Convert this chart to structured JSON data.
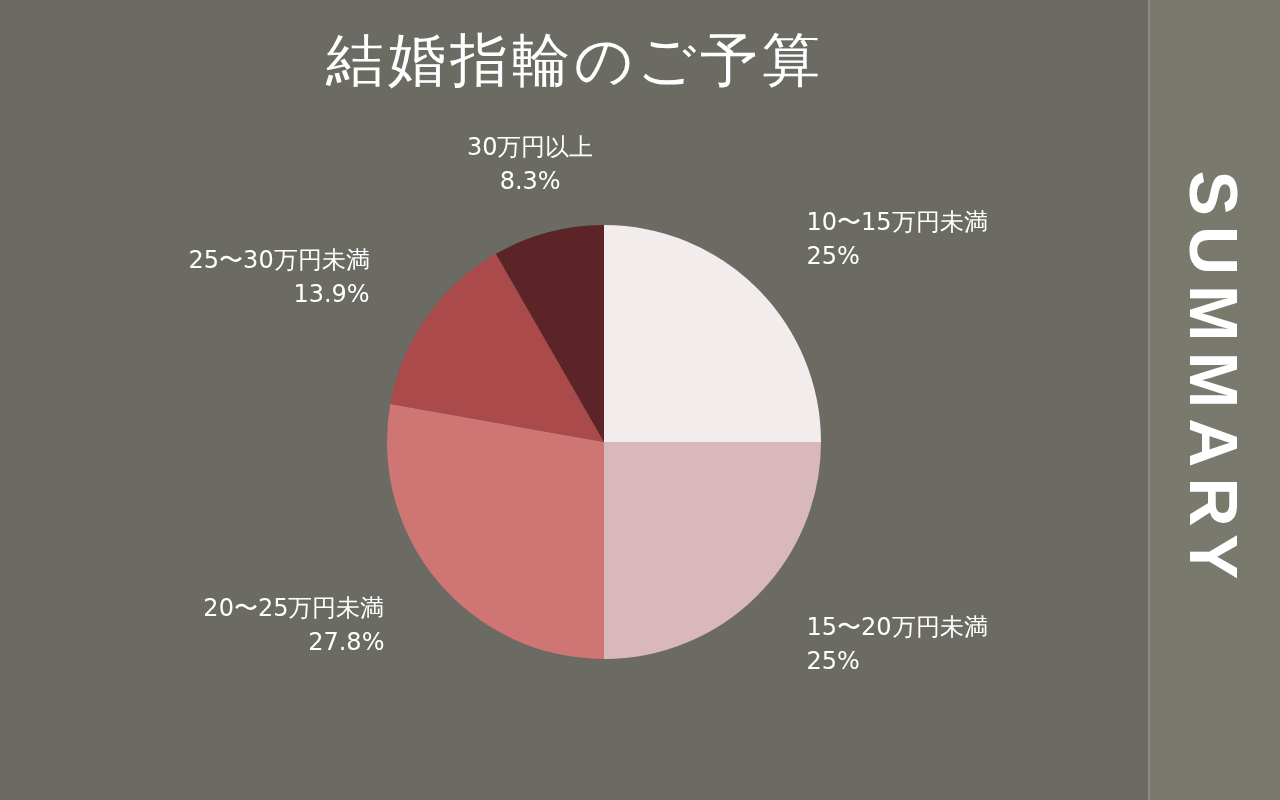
{
  "chart_data": {
    "type": "pie",
    "title": "結婚指輪のご予算",
    "categories": [
      "10〜15万円未満",
      "15〜20万円未満",
      "20〜25万円未満",
      "25〜30万円未満",
      "30万円以上"
    ],
    "values": [
      25,
      25,
      27.8,
      13.9,
      8.3
    ],
    "value_labels": [
      "25%",
      "25%",
      "27.8%",
      "13.9%",
      "8.3%"
    ],
    "colors": [
      "#f2ecec",
      "#d9b8bc",
      "#cf7674",
      "#aa4a4a",
      "#5c2427"
    ],
    "legend": false,
    "annotations": [
      "SUMMARY"
    ]
  }
}
